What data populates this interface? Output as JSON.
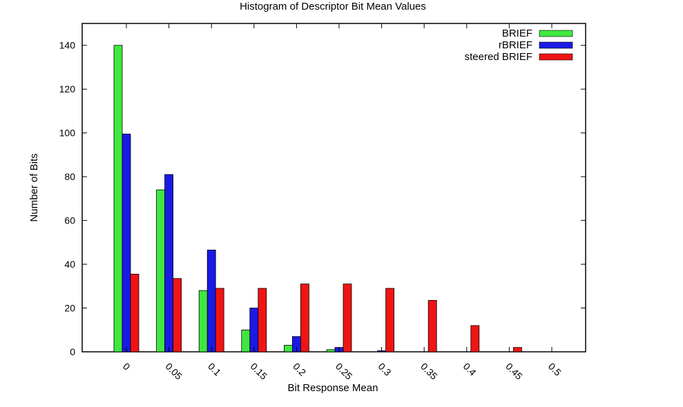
{
  "chart_data": {
    "type": "bar",
    "title": "Histogram of Descriptor Bit Mean Values",
    "xlabel": "Bit Response Mean",
    "ylabel": "Number of Bits",
    "categories": [
      "0",
      "0.05",
      "0.1",
      "0.15",
      "0.2",
      "0.25",
      "0.3",
      "0.35",
      "0.4",
      "0.45",
      "0.5"
    ],
    "ylim": [
      0,
      150
    ],
    "yticks": [
      0,
      20,
      40,
      60,
      80,
      100,
      120,
      140
    ],
    "ytick_labels": [
      "0",
      "20",
      "40",
      "60",
      "80",
      "100",
      "120",
      "140"
    ],
    "grid": false,
    "legend_position": "top-right",
    "series": [
      {
        "name": "BRIEF",
        "color": "#3fe83f",
        "values": [
          140,
          74,
          28,
          10,
          3,
          1,
          0,
          0,
          0,
          0,
          0
        ]
      },
      {
        "name": "rBRIEF",
        "color": "#1a1ae6",
        "values": [
          99.5,
          81,
          46.5,
          20,
          7,
          2,
          0.5,
          0,
          0,
          0,
          0
        ]
      },
      {
        "name": "steered BRIEF",
        "color": "#f01414",
        "values": [
          35.5,
          33.5,
          29,
          29,
          31,
          31,
          29,
          23.5,
          12,
          2,
          0
        ]
      }
    ]
  }
}
